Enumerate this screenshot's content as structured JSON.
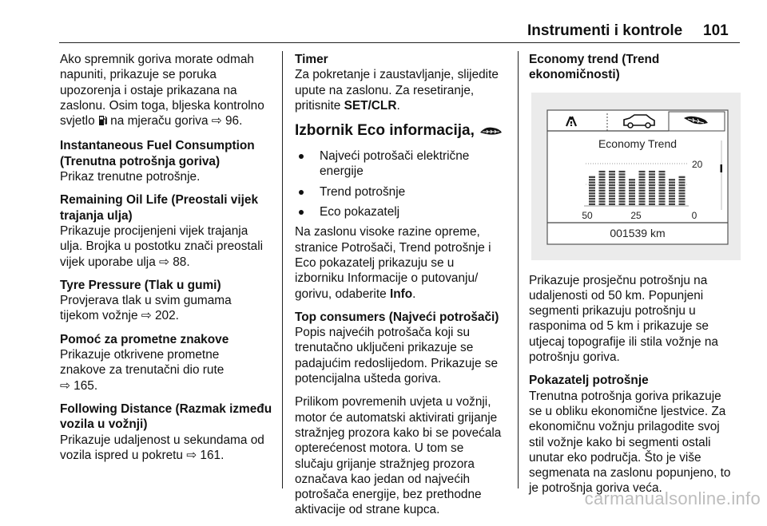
{
  "header": {
    "title": "Instrumenti i kontrole",
    "page": "101"
  },
  "watermark": "carmanualsonline.info",
  "columns": [
    {
      "blocks": [
        {
          "type": "p",
          "lines": [
            "Ako spremnik goriva morate odmah",
            "napuniti, prikazuje se poruka",
            "upozorenja i ostaje prikazana na",
            "zaslonu. Osim toga, bljeska kontrolno",
            [
              "svjetlo ",
              {
                "icon": "fuel-pump"
              },
              " na mjeraču goriva ⇨ 96."
            ]
          ]
        },
        {
          "type": "hp",
          "head": [
            "Instantaneous Fuel Consumption",
            "(Trenutna potrošnja goriva)"
          ],
          "lines": [
            "Prikaz trenutne potrošnje."
          ]
        },
        {
          "type": "hp",
          "head": [
            "Remaining Oil Life (Preostali vijek",
            "trajanja ulja)"
          ],
          "lines": [
            "Prikazuje procijenjeni vijek trajanja",
            "ulja. Brojka u postotku znači preostali",
            "vijek uporabe ulja ⇨ 88."
          ]
        },
        {
          "type": "hp",
          "head": [
            "Tyre Pressure (Tlak u gumi)"
          ],
          "lines": [
            "Provjerava tlak u svim gumama",
            "tijekom vožnje ⇨ 202."
          ]
        },
        {
          "type": "hp",
          "head": [
            "Pomoć za prometne znakove"
          ],
          "lines": [
            "Prikazuje otkrivene prometne",
            "znakove za trenutačni dio rute",
            "⇨ 165."
          ]
        },
        {
          "type": "hp",
          "head": [
            "Following Distance (Razmak između",
            "vozila u vožnji)"
          ],
          "lines": [
            "Prikazuje udaljenost u sekundama od",
            "vozila ispred u pokretu ⇨ 161."
          ]
        }
      ]
    },
    {
      "blocks": [
        {
          "type": "hp",
          "head": [
            "Timer"
          ],
          "lines": [
            "Za pokretanje i zaustavljanje, slijedite",
            "upute na zaslonu. Za resetiranje,",
            [
              "pritisnite ",
              {
                "b": "SET/CLR"
              },
              "."
            ]
          ]
        },
        {
          "type": "h2",
          "lines": [
            [
              "Izbornik Eco informacija, ",
              {
                "icon": "eco-leaf"
              }
            ]
          ]
        },
        {
          "type": "li",
          "lines": [
            "Najveći potrošači električne",
            "energije"
          ]
        },
        {
          "type": "li",
          "lines": [
            "Trend potrošnje"
          ]
        },
        {
          "type": "li",
          "lines": [
            "Eco pokazatelj"
          ]
        },
        {
          "type": "p",
          "lines": [
            "Na zaslonu visoke razine opreme,",
            "stranice Potrošači, Trend potrošnje i",
            "Eco pokazatelj prikazuju se u",
            "izborniku Informacije o putovanju/",
            [
              "gorivu, odaberite ",
              {
                "b": "Info"
              },
              "."
            ]
          ]
        },
        {
          "type": "hp",
          "head": [
            "Top consumers (Najveći potrošači)"
          ],
          "lines": [
            "Popis najvećih potrošača koji su",
            "trenutačno uključeni prikazuje se",
            "padajućim redoslijedom. Prikazuje se",
            "potencijalna ušteda goriva."
          ]
        },
        {
          "type": "p",
          "lines": [
            "Prilikom povremenih uvjeta u vožnji,",
            "motor će automatski aktivirati grijanje",
            "stražnjeg prozora kako bi se povećala",
            "opterećenost motora. U tom se",
            "slučaju grijanje stražnjeg prozora",
            "označava kao jedan od najvećih",
            "potrošača energije, bez prethodne",
            "aktivacije od strane kupca."
          ]
        }
      ]
    },
    {
      "blocks": [
        {
          "type": "h",
          "lines": [
            "Economy trend (Trend",
            "ekonomičnosti)"
          ]
        },
        {
          "type": "figure"
        },
        {
          "type": "p",
          "lines": [
            "Prikazuje prosječnu potrošnju na",
            "udaljenosti od 50 km. Popunjeni",
            "segmenti prikazuju potrošnju u",
            "rasponima od 5 km i prikazuje se",
            "utjecaj topografije ili stila vožnje na",
            "potrošnju goriva."
          ]
        },
        {
          "type": "hp",
          "head": [
            "Pokazatelj potrošnje"
          ],
          "lines": [
            "Trenutna potrošnja goriva prikazuje",
            "se u obliku ekonomične ljestvice. Za",
            "ekonomičnu vožnju prilagodite svoj",
            "stil vožnje kako bi segmenti ostali",
            "unutar eko područja. Što je više",
            "segmenata na zaslonu popunjeno, to",
            "je potrošnja goriva veća."
          ]
        }
      ]
    }
  ],
  "display": {
    "title": "Economy Trend",
    "tabs": [
      "road-icon",
      "car-icon",
      "eco-leaf-icon"
    ],
    "active_tab": 2,
    "y_max_label": "20",
    "x_labels": [
      "50",
      "25",
      "0"
    ],
    "odometer": "001539 km",
    "chart_data": {
      "type": "bar",
      "values": [
        14,
        17,
        17,
        16,
        13,
        16,
        16,
        17,
        12,
        14
      ],
      "ylim": [
        0,
        20
      ],
      "x_labels": [
        "50",
        "25",
        "0"
      ],
      "y_labels": [
        "20",
        "0"
      ]
    }
  }
}
